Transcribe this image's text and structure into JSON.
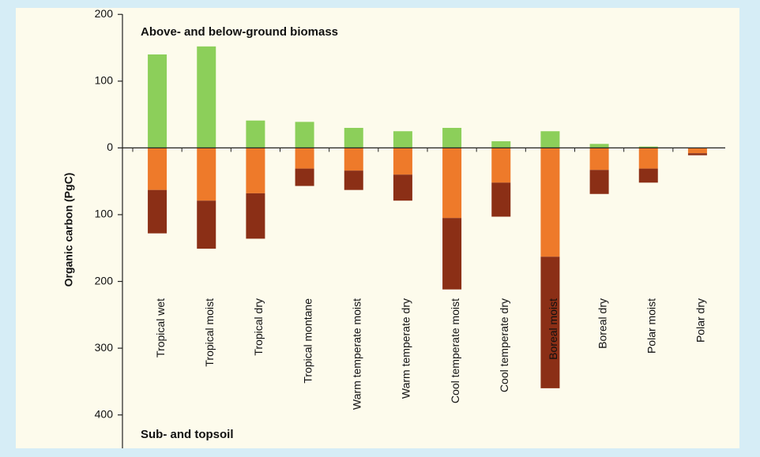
{
  "chart_data": {
    "type": "bar",
    "y_axis_label": "Organic carbon (PgC)",
    "annotations": [
      "Above- and below-ground biomass",
      "Sub- and topsoil"
    ],
    "categories": [
      "Tropical wet",
      "Tropical moist",
      "Tropical dry",
      "Tropical montane",
      "Warm temperate moist",
      "Warm temperate dry",
      "Cool temperate moist",
      "Cool temperate dry",
      "Boreal moist",
      "Boreal dry",
      "Polar moist",
      "Polar dry"
    ],
    "series": [
      {
        "color": "#8ccf5a",
        "values": [
          140,
          152,
          41,
          39,
          30,
          25,
          30,
          10,
          25,
          6,
          2,
          0
        ]
      },
      {
        "color": "#ee7a2a",
        "values": [
          -63,
          -79,
          -68,
          -31,
          -34,
          -40,
          -105,
          -52,
          -163,
          -33,
          -31,
          -8
        ]
      },
      {
        "color": "#8b2f16",
        "values": [
          -65,
          -72,
          -68,
          -26,
          -29,
          -39,
          -107,
          -51,
          -197,
          -36,
          -21,
          -3
        ]
      }
    ],
    "ylim": [
      -450,
      205
    ],
    "yticks": [
      200,
      100,
      0,
      {
        "value": -100,
        "label": "100"
      },
      {
        "value": -200,
        "label": "200"
      },
      {
        "value": -300,
        "label": "300"
      },
      {
        "value": -400,
        "label": "400"
      }
    ]
  }
}
